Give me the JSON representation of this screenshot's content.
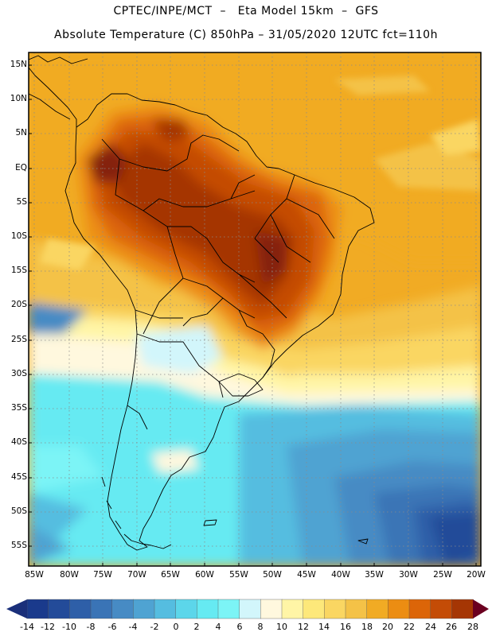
{
  "header": {
    "line1": "CPTEC/INPE/MCT  –   Eta Model 15km  –  GFS",
    "line2": "Absolute Temperature (C) 850hPa – 31/05/2020 12UTC fct=110h"
  },
  "axes": {
    "lat_labels": [
      "15N",
      "10N",
      "5N",
      "EQ",
      "5S",
      "10S",
      "15S",
      "20S",
      "25S",
      "30S",
      "35S",
      "40S",
      "45S",
      "50S",
      "55S"
    ],
    "lon_labels": [
      "85W",
      "80W",
      "75W",
      "70W",
      "65W",
      "60W",
      "55W",
      "50W",
      "45W",
      "40W",
      "35W",
      "30W",
      "25W",
      "20W"
    ]
  },
  "colorbar": {
    "labels": [
      "-14",
      "-12",
      "-10",
      "-8",
      "-6",
      "-4",
      "-2",
      "0",
      "2",
      "4",
      "6",
      "8",
      "10",
      "12",
      "14",
      "16",
      "18",
      "20",
      "22",
      "24",
      "26",
      "28"
    ],
    "colors": [
      "#1a3a8c",
      "#234b99",
      "#2e5fa8",
      "#3a74b6",
      "#478bc4",
      "#4fa3d2",
      "#55bde0",
      "#5cd6ea",
      "#66eaf2",
      "#7cf4f6",
      "#d2f6fb",
      "#fff8de",
      "#fff5a6",
      "#fde87a",
      "#fad662",
      "#f4c247",
      "#f1ab24",
      "#ec8d12",
      "#dc6508",
      "#c44c06",
      "#a53604",
      "#85200a"
    ],
    "over_color": "#6b0020",
    "under_color": "#1a2f7a"
  }
}
